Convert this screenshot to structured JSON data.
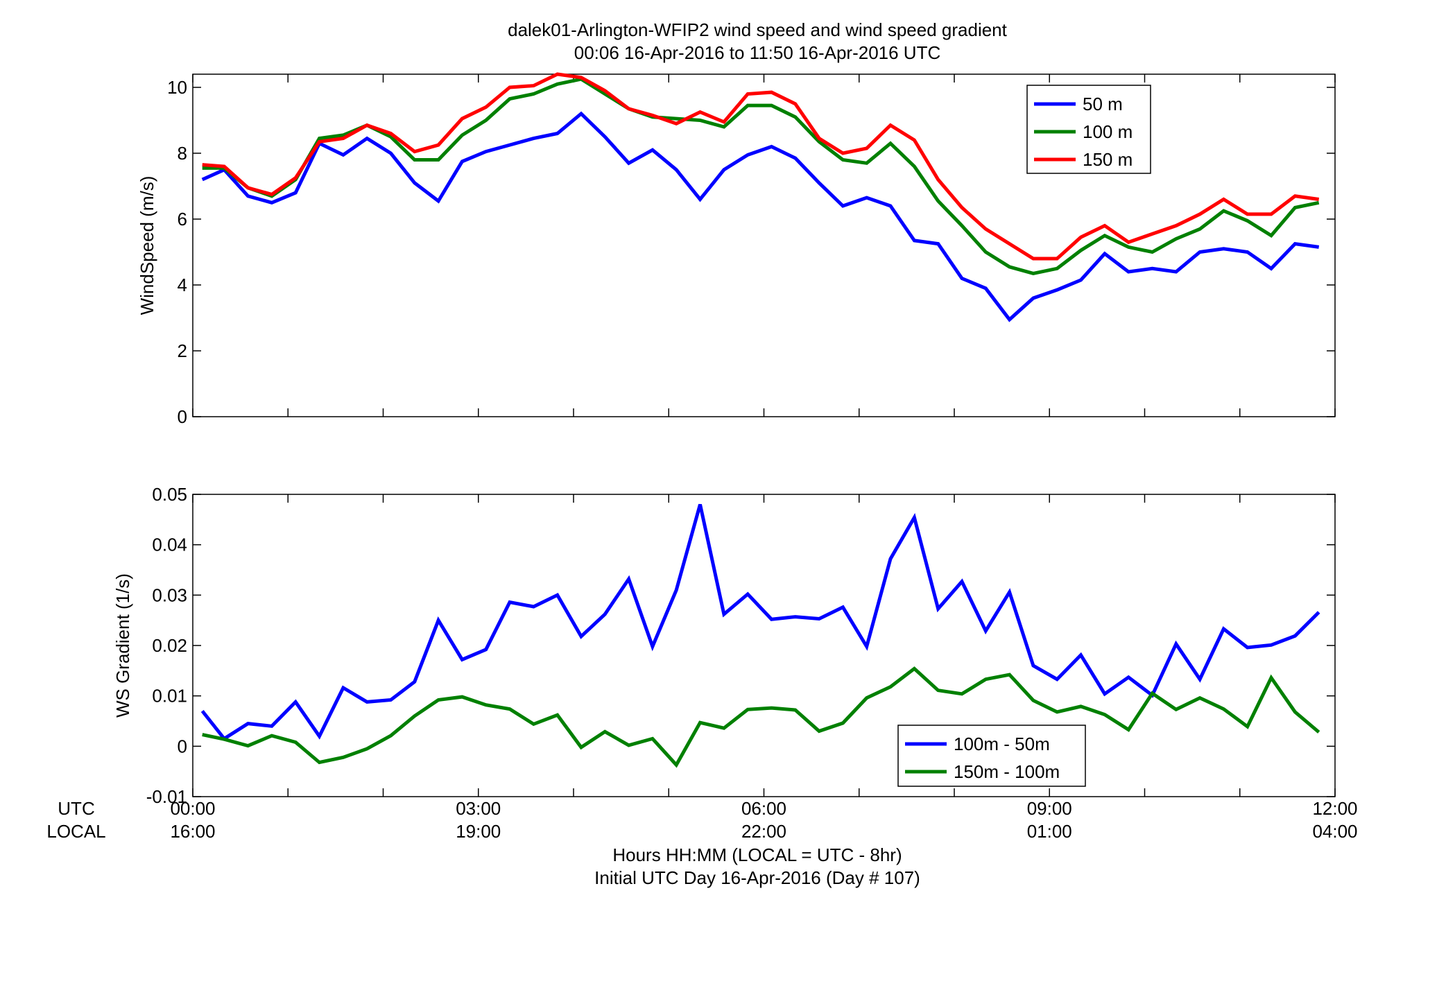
{
  "figure": {
    "title_line1": "dalek01-Arlington-WFIP2  wind speed and wind speed gradient",
    "title_line2": "00:06 16-Apr-2016 to 11:50 16-Apr-2016  UTC",
    "utc_label": "UTC",
    "local_label": "LOCAL",
    "x_utc_ticks": [
      "00:00",
      "03:00",
      "06:00",
      "09:00",
      "12:00"
    ],
    "x_local_ticks": [
      "16:00",
      "19:00",
      "22:00",
      "01:00",
      "04:00"
    ],
    "xlabel_line1": "Hours HH:MM  (LOCAL = UTC - 8hr)",
    "xlabel_line2": "Initial UTC Day 16-Apr-2016 (Day # 107)"
  },
  "chart_data": [
    {
      "type": "line",
      "ylabel": "WindSpeed (m/s)",
      "xlim": [
        0,
        12
      ],
      "ylim": [
        0,
        10.4
      ],
      "yticks": [
        0,
        2,
        4,
        6,
        8,
        10
      ],
      "ytick_labels": [
        "0",
        "2",
        "4",
        "6",
        "8",
        "10"
      ],
      "grid": false,
      "legend_position": "top-right",
      "x": [
        0.1,
        0.33,
        0.58,
        0.83,
        1.08,
        1.33,
        1.58,
        1.83,
        2.08,
        2.33,
        2.58,
        2.83,
        3.08,
        3.33,
        3.58,
        3.83,
        4.08,
        4.33,
        4.58,
        4.83,
        5.08,
        5.33,
        5.58,
        5.83,
        6.08,
        6.33,
        6.58,
        6.83,
        7.08,
        7.33,
        7.58,
        7.83,
        8.08,
        8.33,
        8.58,
        8.83,
        9.08,
        9.33,
        9.58,
        9.83,
        10.08,
        10.33,
        10.58,
        10.83,
        11.08,
        11.33,
        11.58,
        11.83
      ],
      "series": [
        {
          "name": "50 m",
          "color": "#0000ff",
          "values": [
            7.2,
            7.5,
            6.7,
            6.5,
            6.8,
            8.3,
            7.95,
            8.45,
            8.0,
            7.1,
            6.55,
            7.75,
            8.05,
            8.25,
            8.45,
            8.6,
            9.2,
            8.5,
            7.7,
            8.1,
            7.5,
            6.6,
            7.5,
            7.95,
            8.2,
            7.85,
            7.1,
            6.4,
            6.65,
            6.4,
            5.35,
            5.25,
            4.2,
            3.9,
            2.95,
            3.6,
            3.85,
            4.15,
            4.95,
            4.4,
            4.5,
            4.4,
            5.0,
            5.1,
            5.0,
            4.5,
            5.25,
            5.15
          ]
        },
        {
          "name": "100 m",
          "color": "#008000",
          "values": [
            7.55,
            7.55,
            6.95,
            6.7,
            7.2,
            8.45,
            8.55,
            8.85,
            8.5,
            7.8,
            7.8,
            8.55,
            9.0,
            9.65,
            9.8,
            10.1,
            10.25,
            9.8,
            9.35,
            9.1,
            9.05,
            9.0,
            8.8,
            9.45,
            9.45,
            9.1,
            8.35,
            7.8,
            7.7,
            8.3,
            7.6,
            6.55,
            5.8,
            5.0,
            4.55,
            4.35,
            4.5,
            5.05,
            5.5,
            5.15,
            5.0,
            5.4,
            5.7,
            6.25,
            5.95,
            5.5,
            6.35,
            6.5
          ]
        },
        {
          "name": "150 m",
          "color": "#ff0000",
          "values": [
            7.65,
            7.6,
            6.95,
            6.75,
            7.25,
            8.35,
            8.45,
            8.85,
            8.6,
            8.05,
            8.25,
            9.05,
            9.4,
            10.0,
            10.05,
            10.4,
            10.3,
            9.9,
            9.35,
            9.15,
            8.9,
            9.25,
            8.95,
            9.8,
            9.85,
            9.5,
            8.45,
            8.0,
            8.15,
            8.85,
            8.4,
            7.2,
            6.35,
            5.7,
            5.25,
            4.8,
            4.8,
            5.45,
            5.8,
            5.3,
            5.55,
            5.8,
            6.15,
            6.6,
            6.15,
            6.15,
            6.7,
            6.6
          ]
        }
      ]
    },
    {
      "type": "line",
      "ylabel": "WS Gradient (1/s)",
      "xlim": [
        0,
        12
      ],
      "ylim": [
        -0.01,
        0.05
      ],
      "yticks": [
        -0.01,
        0,
        0.01,
        0.02,
        0.03,
        0.04,
        0.05
      ],
      "ytick_labels": [
        "-0.01",
        "0",
        "0.01",
        "0.02",
        "0.03",
        "0.04",
        "0.05"
      ],
      "grid": false,
      "legend_position": "bottom-center",
      "x": [
        0.1,
        0.33,
        0.58,
        0.83,
        1.08,
        1.33,
        1.58,
        1.83,
        2.08,
        2.33,
        2.58,
        2.83,
        3.08,
        3.33,
        3.58,
        3.83,
        4.08,
        4.33,
        4.58,
        4.83,
        5.08,
        5.33,
        5.58,
        5.83,
        6.08,
        6.33,
        6.58,
        6.83,
        7.08,
        7.33,
        7.58,
        7.83,
        8.08,
        8.33,
        8.58,
        8.83,
        9.08,
        9.33,
        9.58,
        9.83,
        10.08,
        10.33,
        10.58,
        10.83,
        11.08,
        11.33,
        11.58,
        11.83
      ],
      "series": [
        {
          "name": "100m - 50m",
          "color": "#0000ff",
          "values": [
            0.007,
            0.0015,
            0.0045,
            0.004,
            0.0088,
            0.002,
            0.0116,
            0.0088,
            0.0092,
            0.0128,
            0.025,
            0.0172,
            0.0192,
            0.0286,
            0.0277,
            0.03,
            0.0218,
            0.0262,
            0.0332,
            0.0198,
            0.031,
            0.048,
            0.0262,
            0.0302,
            0.0252,
            0.0257,
            0.0253,
            0.0276,
            0.0198,
            0.0372,
            0.0454,
            0.0273,
            0.0327,
            0.0229,
            0.0306,
            0.016,
            0.0133,
            0.0181,
            0.0104,
            0.0137,
            0.0101,
            0.0203,
            0.0133,
            0.0233,
            0.0196,
            0.0201,
            0.0219,
            0.0266
          ]
        },
        {
          "name": "150m - 100m",
          "color": "#008000",
          "values": [
            0.0023,
            0.0014,
            0.0001,
            0.0021,
            0.0008,
            -0.0032,
            -0.0022,
            -0.0005,
            0.0021,
            0.006,
            0.0092,
            0.0098,
            0.0082,
            0.0074,
            0.0044,
            0.0062,
            -0.0002,
            0.0029,
            0.0002,
            0.0015,
            -0.0037,
            0.0047,
            0.0036,
            0.0073,
            0.0076,
            0.0072,
            0.003,
            0.0046,
            0.0096,
            0.0118,
            0.0154,
            0.0111,
            0.0104,
            0.0133,
            0.0142,
            0.0091,
            0.0068,
            0.0079,
            0.0063,
            0.0033,
            0.0105,
            0.0073,
            0.0096,
            0.0074,
            0.0039,
            0.0136,
            0.0068,
            0.0028
          ]
        }
      ]
    }
  ]
}
